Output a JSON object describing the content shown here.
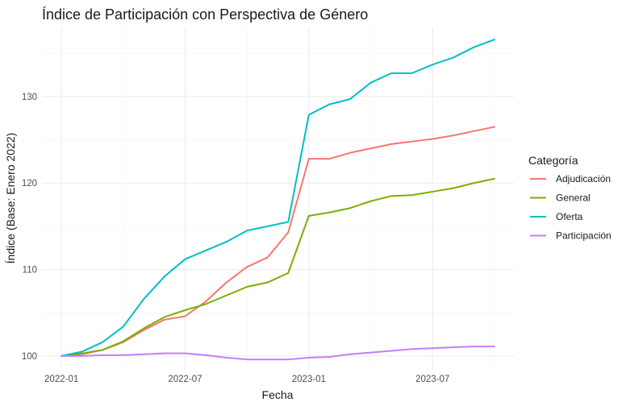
{
  "chart_data": {
    "type": "line",
    "title": "Índice de Participación con Perspectiva de Género",
    "xlabel": "Fecha",
    "ylabel": "Índice (Base: Enero 2022)",
    "x": [
      "2022-01",
      "2022-02",
      "2022-03",
      "2022-04",
      "2022-05",
      "2022-06",
      "2022-07",
      "2022-08",
      "2022-09",
      "2022-10",
      "2022-11",
      "2022-12",
      "2023-01",
      "2023-02",
      "2023-03",
      "2023-04",
      "2023-05",
      "2023-06",
      "2023-07",
      "2023-08",
      "2023-09",
      "2023-10"
    ],
    "x_ticks": [
      "2022-01",
      "2022-07",
      "2023-01",
      "2023-07"
    ],
    "y_ticks": [
      100,
      110,
      120,
      130
    ],
    "ylim": [
      98.5,
      138.0
    ],
    "grid": true,
    "legend_position": "right",
    "legend_title": "Categoría",
    "series": [
      {
        "name": "Adjudicación",
        "color": "#F8766D",
        "values": [
          100.0,
          100.2,
          100.7,
          101.6,
          103.0,
          104.2,
          104.6,
          106.3,
          108.5,
          110.3,
          111.4,
          114.3,
          122.8,
          122.8,
          123.5,
          124.0,
          124.5,
          124.8,
          125.1,
          125.5,
          126.0,
          126.5
        ]
      },
      {
        "name": "General",
        "color": "#7CAE00",
        "values": [
          100.0,
          100.3,
          100.7,
          101.7,
          103.2,
          104.5,
          105.3,
          106.0,
          107.0,
          108.0,
          108.5,
          109.6,
          116.2,
          116.6,
          117.1,
          117.9,
          118.5,
          118.6,
          119.0,
          119.4,
          120.0,
          120.5
        ]
      },
      {
        "name": "Oferta",
        "color": "#00BFC4",
        "values": [
          100.0,
          100.5,
          101.6,
          103.4,
          106.6,
          109.2,
          111.2,
          112.2,
          113.2,
          114.5,
          115.0,
          115.5,
          127.9,
          129.1,
          129.7,
          131.6,
          132.7,
          132.7,
          133.7,
          134.5,
          135.7,
          136.6
        ]
      },
      {
        "name": "Participación",
        "color": "#C77CFF",
        "values": [
          100.0,
          100.0,
          100.1,
          100.1,
          100.2,
          100.3,
          100.3,
          100.1,
          99.8,
          99.6,
          99.6,
          99.6,
          99.8,
          99.9,
          100.2,
          100.4,
          100.6,
          100.8,
          100.9,
          101.0,
          101.1,
          101.1
        ]
      }
    ]
  }
}
